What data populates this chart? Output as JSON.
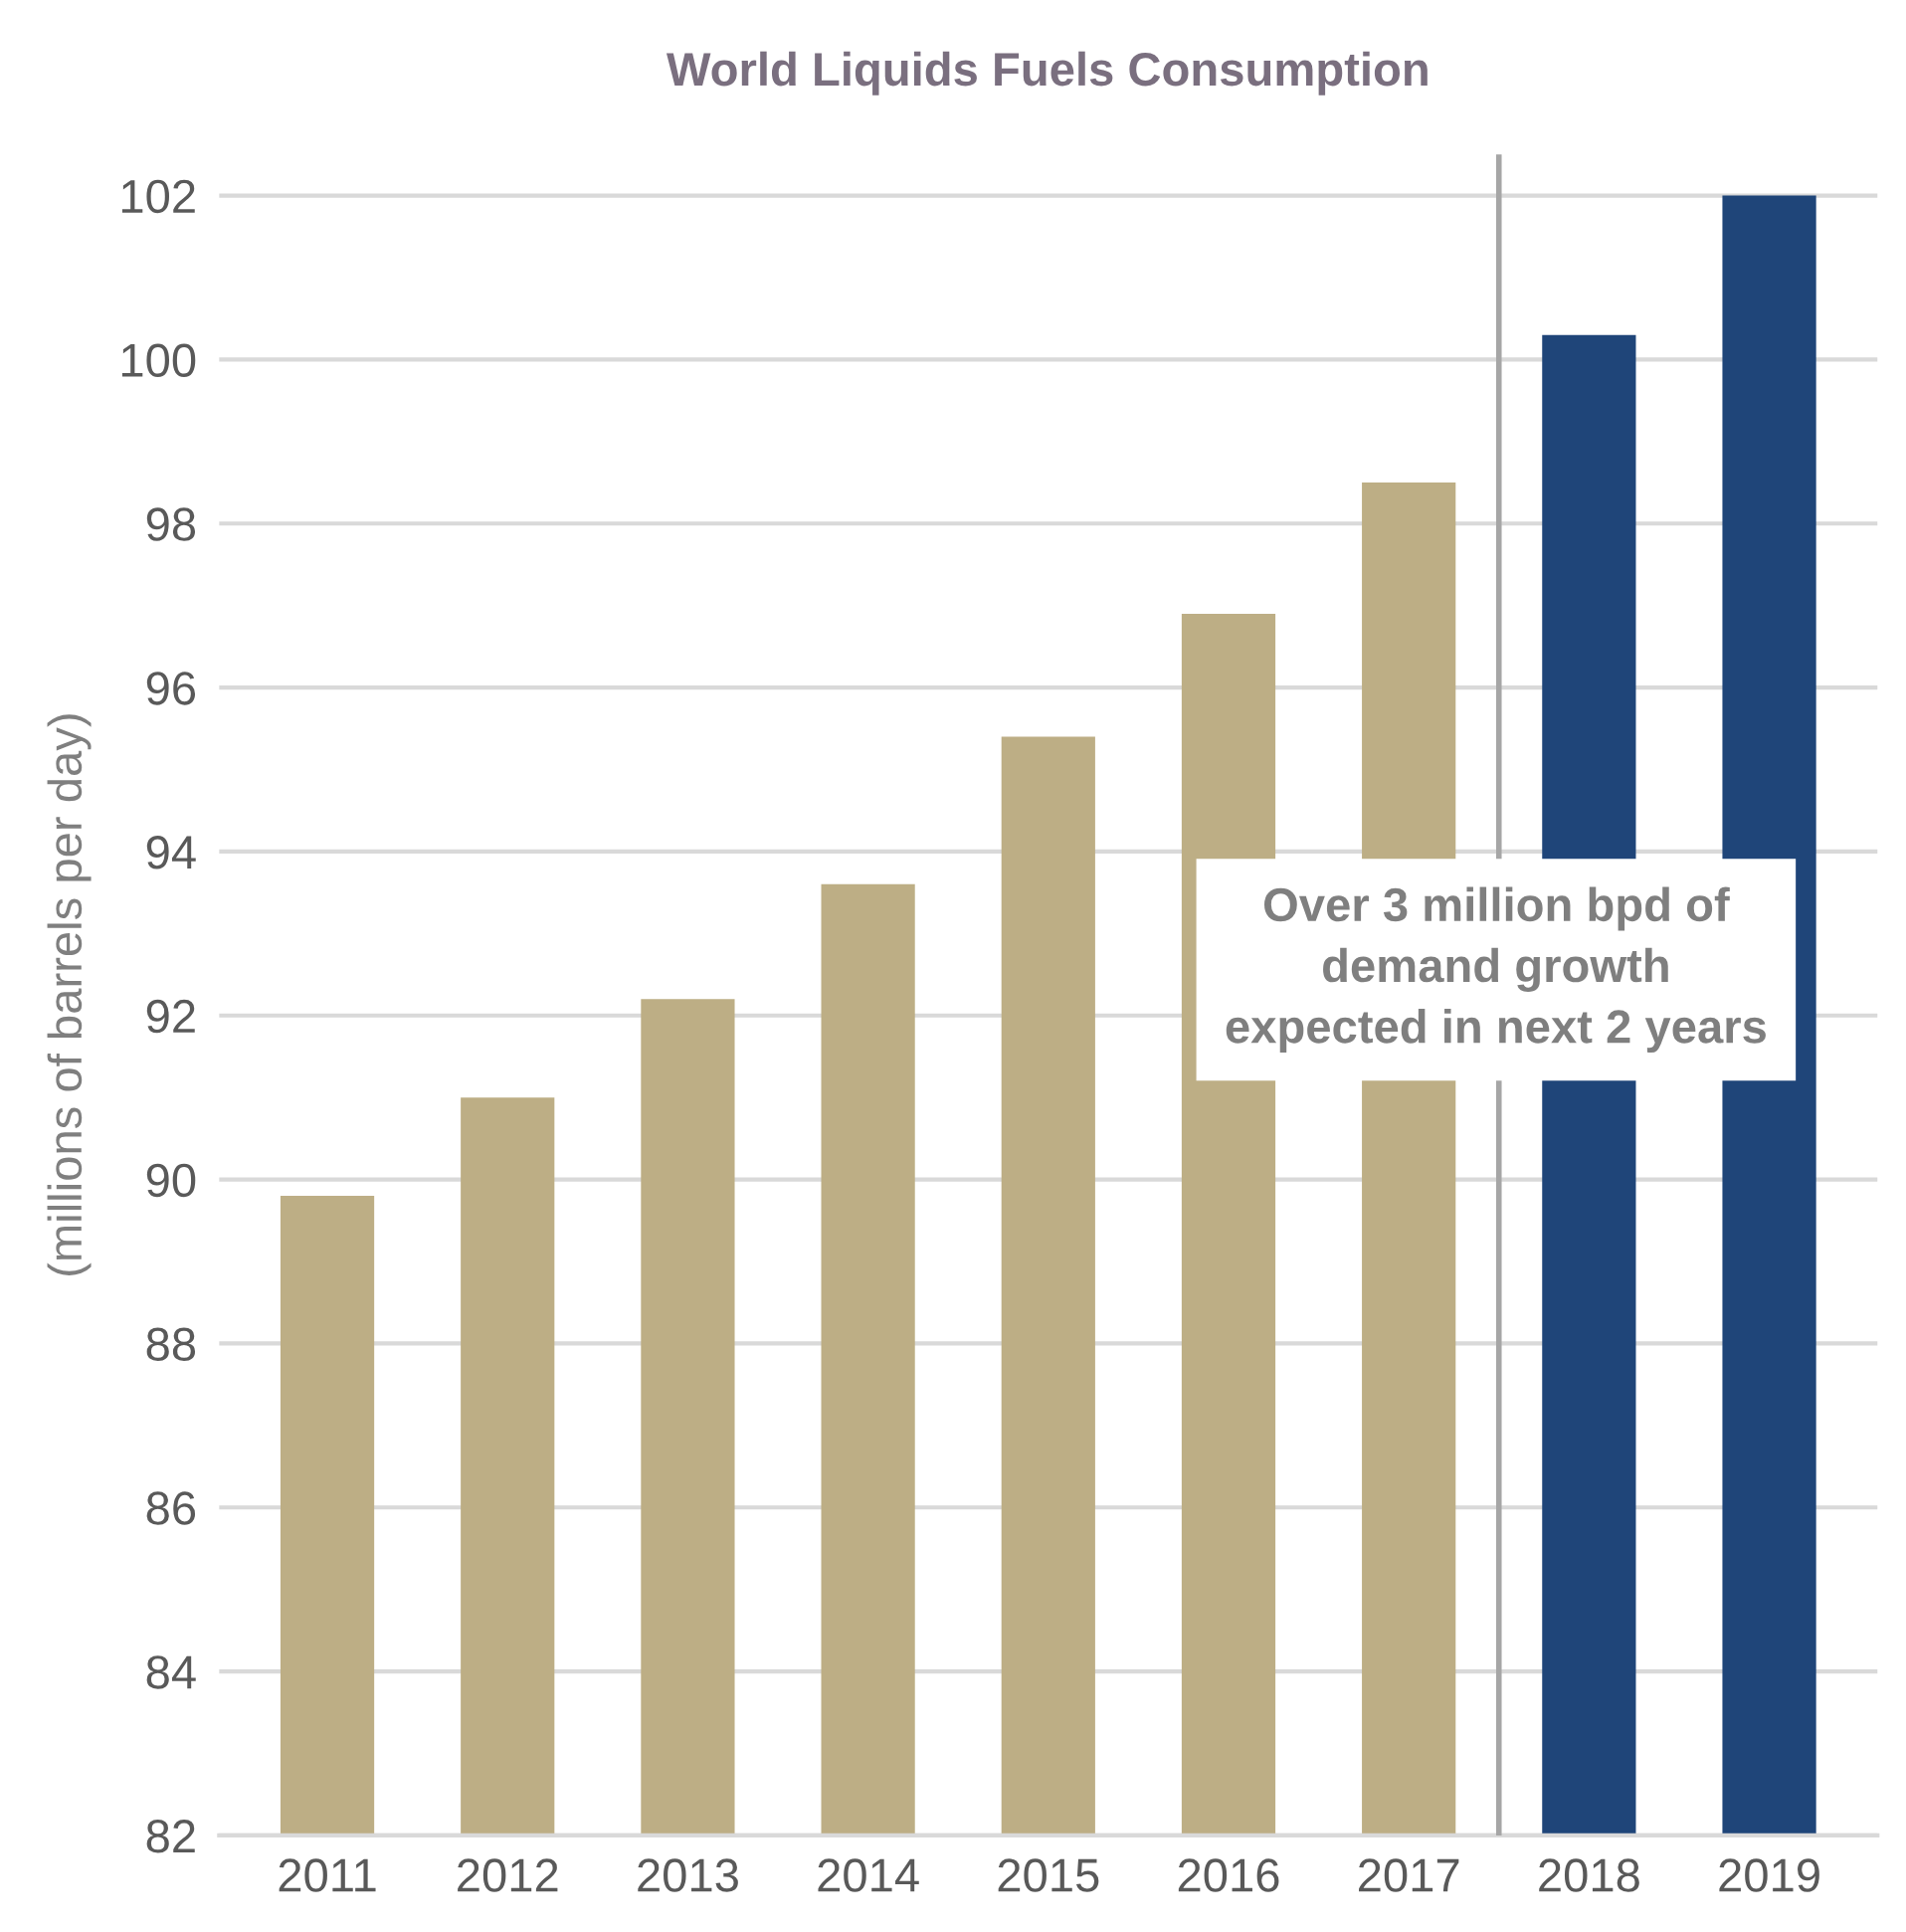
{
  "chart_data": {
    "type": "bar",
    "title": "World Liquids Fuels Consumption",
    "ylabel": "(millions of barrels per day)",
    "x": [
      2011,
      2012,
      2013,
      2014,
      2015,
      2016,
      2017,
      2018,
      2019
    ],
    "values": [
      89.8,
      91.0,
      92.2,
      93.6,
      95.4,
      96.9,
      98.5,
      100.3,
      102.0
    ],
    "colors": [
      "#bdae85",
      "#bdae85",
      "#bdae85",
      "#bdae85",
      "#bdae85",
      "#bdae85",
      "#bdae85",
      "#1f4579",
      "#1f4579"
    ],
    "xlim": [
      2010.4,
      2019.6
    ],
    "xticks": [
      2011,
      2012,
      2013,
      2014,
      2015,
      2016,
      2017,
      2018,
      2019
    ],
    "ylim": [
      82,
      102.5
    ],
    "yticks": [
      82,
      84,
      86,
      88,
      90,
      92,
      94,
      96,
      98,
      100,
      102
    ],
    "grid": "y",
    "ref_lines": [
      {
        "axis": "x",
        "value": 2017.5,
        "color": "#a6a6a6"
      }
    ],
    "annotations": [
      "Over 3 million bpd of\ndemand growth\nexpected in next 2 years"
    ]
  }
}
